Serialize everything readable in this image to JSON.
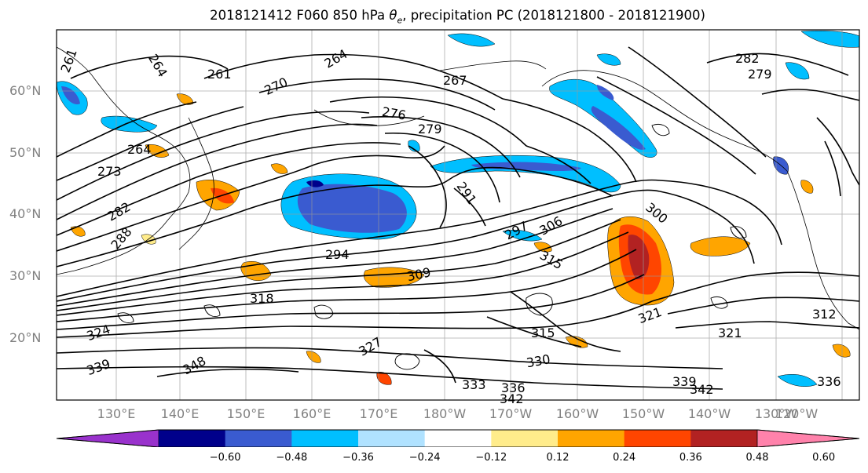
{
  "title": {
    "prefix": "2018121412 F060 850 hPa ",
    "theta": "θ",
    "theta_sub": "e",
    "suffix": ", precipitation PC (2018121800 - 2018121900)"
  },
  "lat_labels": [
    "60°N",
    "50°N",
    "40°N",
    "30°N",
    "20°N"
  ],
  "lon_labels": [
    "130°E",
    "140°E",
    "150°E",
    "160°E",
    "170°E",
    "180°W",
    "170°W",
    "160°W",
    "150°W",
    "140°W",
    "130°W",
    "120°W"
  ],
  "contour_labels": [
    "261",
    "264",
    "261",
    "264",
    "270",
    "267",
    "276",
    "279",
    "264",
    "273",
    "282",
    "288",
    "291",
    "294",
    "297",
    "300",
    "306",
    "309",
    "315",
    "318",
    "324",
    "312",
    "321",
    "321",
    "315",
    "327",
    "330",
    "333",
    "336",
    "339",
    "342",
    "348",
    "342",
    "336",
    "339",
    "279",
    "282"
  ],
  "colorbar": {
    "colors": [
      "#9932cc",
      "#00008b",
      "#3a5bd0",
      "#00bfff",
      "#b0e2ff",
      "#ffffff",
      "#ffec8b",
      "#ffa500",
      "#ff4500",
      "#b22222",
      "#ff82ab"
    ],
    "tick_labels": [
      "−0.60",
      "−0.48",
      "−0.36",
      "−0.24",
      "−0.12",
      "0.12",
      "0.24",
      "0.36",
      "0.48",
      "0.60"
    ]
  }
}
